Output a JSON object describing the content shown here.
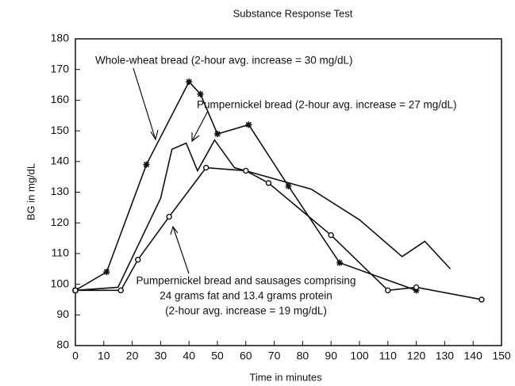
{
  "chart_data": {
    "type": "line",
    "title": "Substance Response Test",
    "x_label": "Time in minutes",
    "y_label": "BG in mg/dL",
    "xlim": [
      0,
      150
    ],
    "xticks": [
      0,
      10,
      20,
      30,
      40,
      50,
      60,
      70,
      80,
      90,
      100,
      110,
      120,
      130,
      140,
      150
    ],
    "ylim": [
      80,
      180
    ],
    "yticks": [
      80,
      90,
      100,
      110,
      120,
      130,
      140,
      150,
      160,
      170,
      180
    ],
    "series": [
      {
        "marker": "star",
        "color": "#111",
        "x": [
          0,
          11,
          25,
          40,
          44,
          50,
          61,
          75,
          93,
          120
        ],
        "values": [
          98,
          104,
          139,
          166,
          162,
          149,
          152,
          132,
          107,
          98
        ]
      },
      {
        "marker": "none",
        "color": "#111",
        "x": [
          0,
          15,
          30,
          34,
          39,
          43,
          49,
          56,
          83,
          100,
          115,
          123,
          132
        ],
        "values": [
          98,
          99,
          128,
          144,
          146,
          137,
          147,
          138,
          131,
          121,
          109,
          114,
          105
        ]
      },
      {
        "marker": "circle",
        "color": "#111",
        "x": [
          0,
          16,
          22,
          33,
          46,
          60,
          68,
          90,
          110,
          120,
          143
        ],
        "values": [
          98,
          98,
          108,
          122,
          138,
          137,
          133,
          116,
          98,
          99,
          95
        ]
      }
    ],
    "annotations": [
      {
        "lines": [
          "Whole-wheat bread (2-hour avg. increase = 30 mg/dL)"
        ]
      },
      {
        "lines": [
          "Pumpernickel bread (2-hour avg. increase = 27 mg/dL)"
        ]
      },
      {
        "lines": [
          "Pumpernickel bread and sausages comprising",
          "24 grams fat and 13.4 grams protein",
          "(2-hour avg. increase = 19 mg/dL)"
        ]
      }
    ]
  }
}
